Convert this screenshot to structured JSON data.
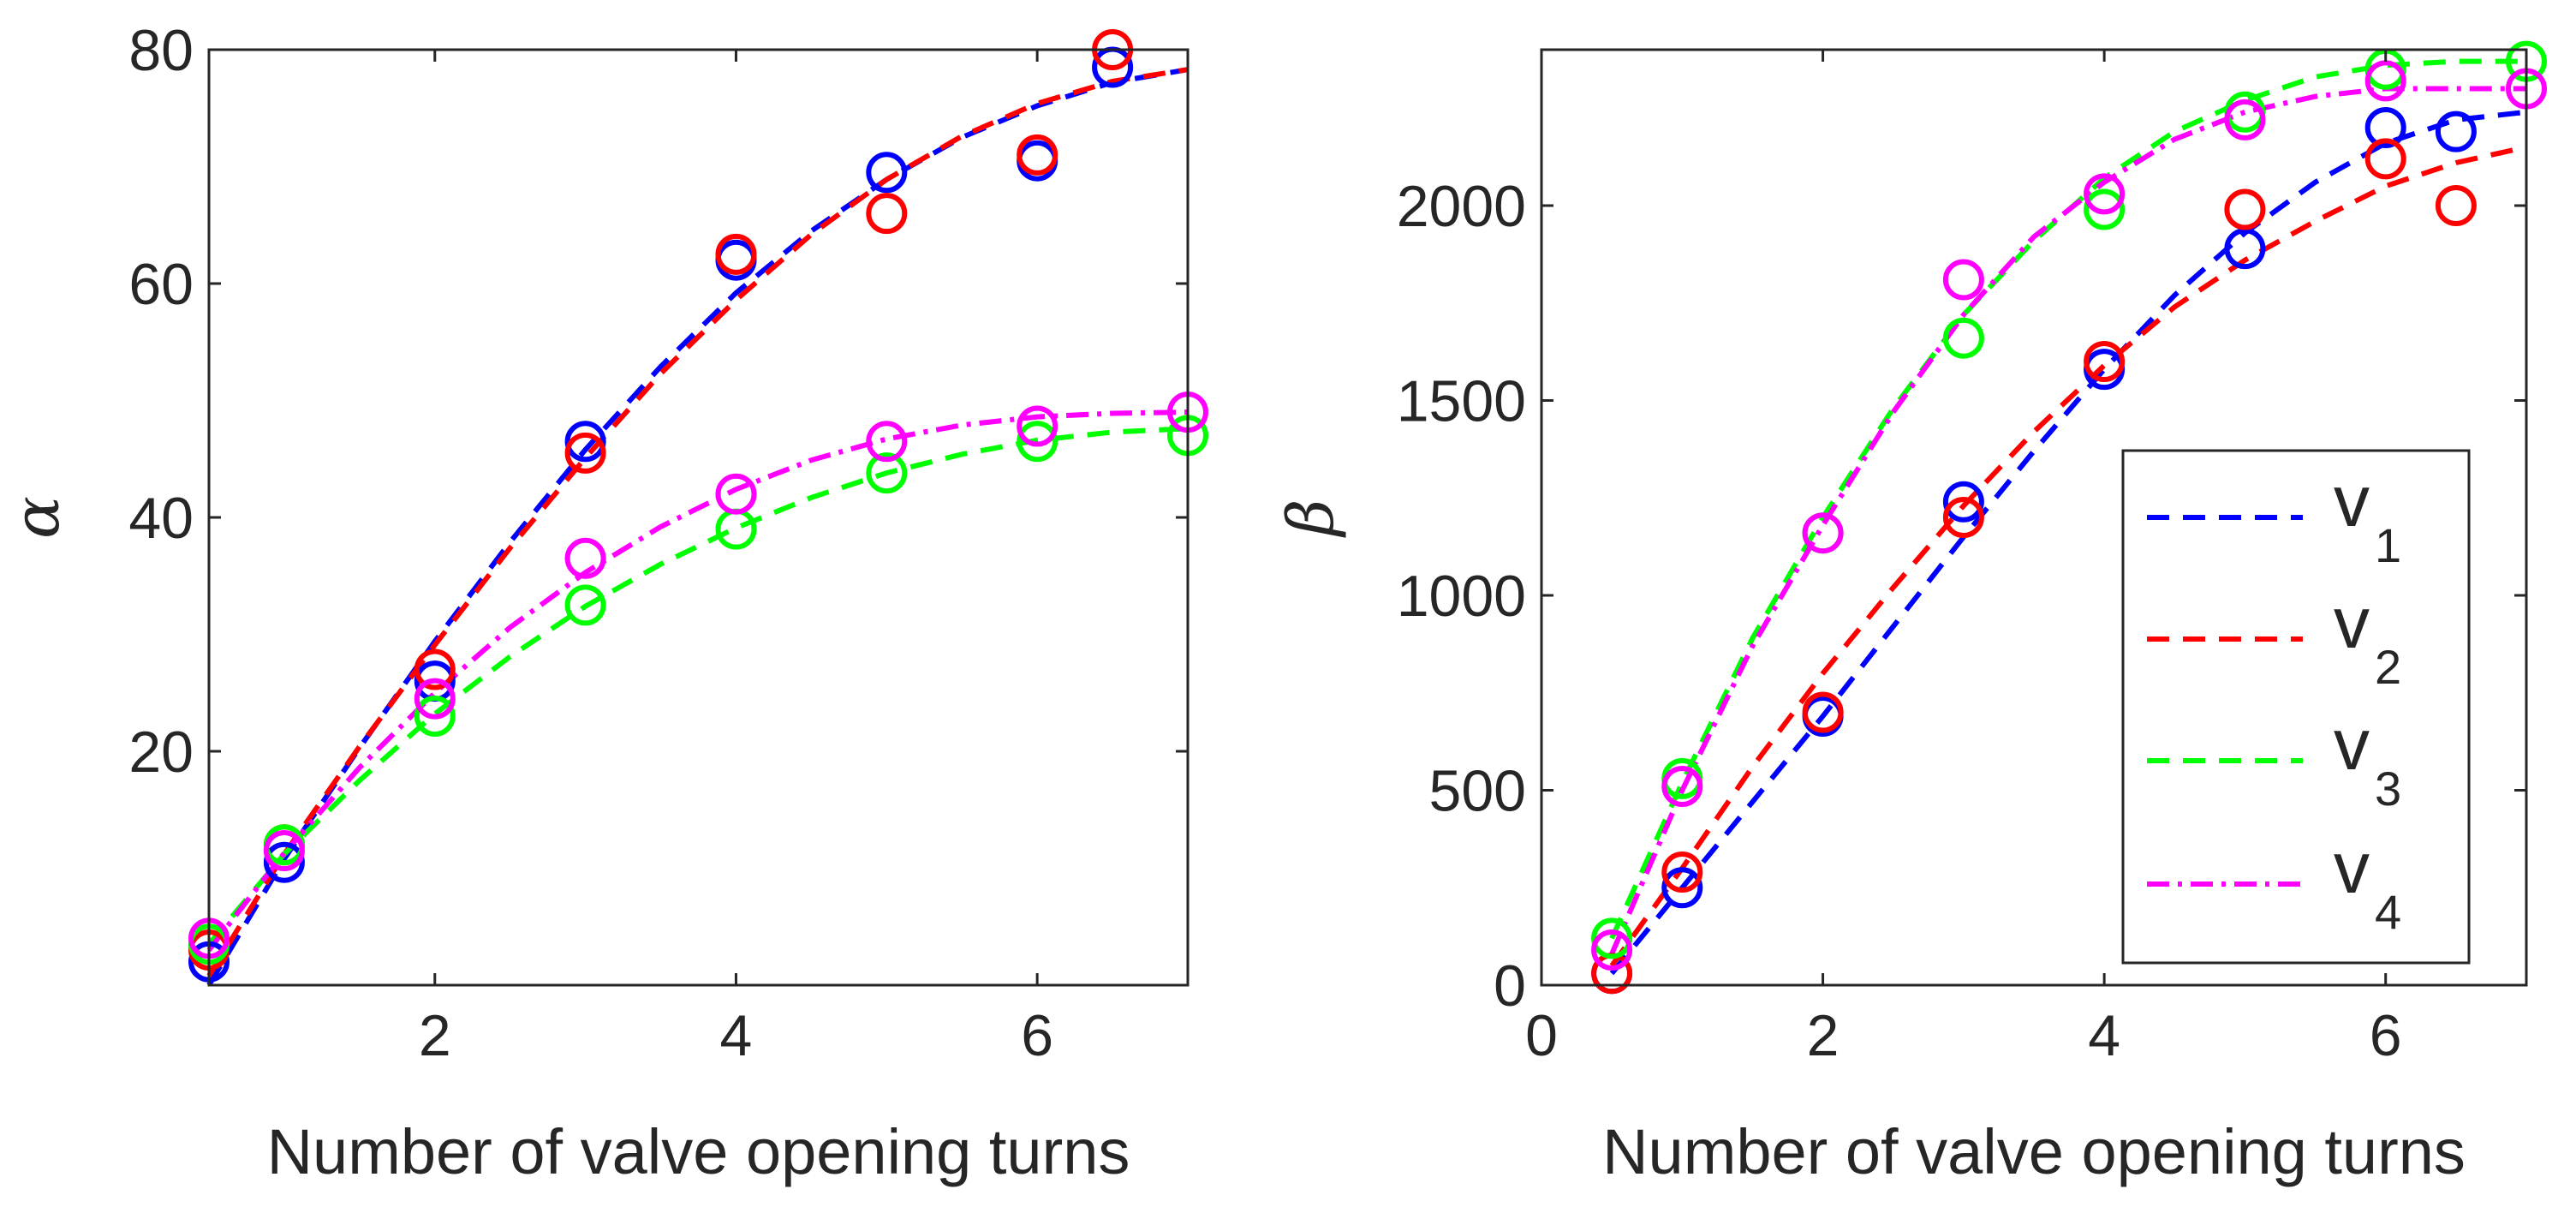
{
  "colors": {
    "v1": "#0000ff",
    "v2": "#ff0000",
    "v3": "#00ff00",
    "v4": "#ff00ff",
    "axis": "#262626",
    "legend_border": "#262626"
  },
  "chart_data": [
    {
      "type": "scatter",
      "xlabel": "Number of valve opening turns",
      "ylabel": "α",
      "xlim": [
        0.5,
        7
      ],
      "ylim": [
        0,
        80
      ],
      "xticks": [
        2,
        4,
        6
      ],
      "yticks": [
        20,
        40,
        60,
        80
      ],
      "grid": false,
      "series": [
        {
          "key": "v1",
          "color": "#0000ff",
          "line": "dashed",
          "points": [
            [
              0.5,
              2
            ],
            [
              1,
              10.5
            ],
            [
              2,
              26
            ],
            [
              3,
              46.5
            ],
            [
              4,
              62
            ],
            [
              5,
              69.5
            ],
            [
              6,
              70.5
            ],
            [
              6.5,
              78.5
            ]
          ],
          "fit": [
            [
              0.5,
              0
            ],
            [
              1,
              10.8
            ],
            [
              1.5,
              20.3
            ],
            [
              2,
              29.4
            ],
            [
              2.5,
              37.9
            ],
            [
              3,
              45.8
            ],
            [
              3.5,
              52.9
            ],
            [
              4,
              59.2
            ],
            [
              4.5,
              64.5
            ],
            [
              5,
              68.9
            ],
            [
              5.5,
              72.5
            ],
            [
              6,
              75.2
            ],
            [
              6.5,
              77.2
            ],
            [
              7,
              78.3
            ]
          ]
        },
        {
          "key": "v2",
          "color": "#ff0000",
          "line": "dashed",
          "points": [
            [
              0.5,
              3
            ],
            [
              1,
              12
            ],
            [
              2,
              27
            ],
            [
              3,
              45.5
            ],
            [
              4,
              62.5
            ],
            [
              5,
              66
            ],
            [
              6,
              71
            ],
            [
              6.5,
              80
            ]
          ],
          "fit": [
            [
              0.5,
              0.8
            ],
            [
              1,
              11.2
            ],
            [
              1.5,
              20.4
            ],
            [
              2,
              29.1
            ],
            [
              2.5,
              37.4
            ],
            [
              3,
              45.1
            ],
            [
              3.5,
              52.3
            ],
            [
              4,
              58.6
            ],
            [
              4.5,
              64.2
            ],
            [
              5,
              68.9
            ],
            [
              5.5,
              72.6
            ],
            [
              6,
              75.4
            ],
            [
              6.5,
              77.3
            ],
            [
              7,
              78.3
            ]
          ]
        },
        {
          "key": "v3",
          "color": "#00ff00",
          "line": "dashed",
          "points": [
            [
              0.5,
              3.5
            ],
            [
              1,
              12
            ],
            [
              2,
              23
            ],
            [
              3,
              32.5
            ],
            [
              4,
              39
            ],
            [
              5,
              43.8
            ],
            [
              6,
              46.5
            ],
            [
              7,
              47
            ]
          ],
          "fit": [
            [
              0.5,
              3.5
            ],
            [
              1,
              11.2
            ],
            [
              1.5,
              17.5
            ],
            [
              2,
              23.2
            ],
            [
              2.5,
              28.1
            ],
            [
              3,
              32.4
            ],
            [
              3.5,
              36.0
            ],
            [
              4,
              39.1
            ],
            [
              4.5,
              41.7
            ],
            [
              5,
              43.8
            ],
            [
              5.5,
              45.4
            ],
            [
              6,
              46.6
            ],
            [
              6.5,
              47.3
            ],
            [
              7,
              47.6
            ]
          ]
        },
        {
          "key": "v4",
          "color": "#ff00ff",
          "line": "dashdot",
          "points": [
            [
              0.5,
              4
            ],
            [
              1,
              11.5
            ],
            [
              2,
              24.5
            ],
            [
              3,
              36.5
            ],
            [
              4,
              42
            ],
            [
              5,
              46.5
            ],
            [
              6,
              47.8
            ],
            [
              7,
              49
            ]
          ],
          "fit": [
            [
              0.5,
              3
            ],
            [
              1,
              11.3
            ],
            [
              1.5,
              18.6
            ],
            [
              2,
              25.0
            ],
            [
              2.5,
              30.6
            ],
            [
              3,
              35.3
            ],
            [
              3.5,
              39.2
            ],
            [
              4,
              42.4
            ],
            [
              4.5,
              44.9
            ],
            [
              5,
              46.7
            ],
            [
              5.5,
              47.9
            ],
            [
              6,
              48.6
            ],
            [
              6.5,
              48.9
            ],
            [
              7,
              49
            ]
          ]
        }
      ]
    },
    {
      "type": "scatter",
      "xlabel": "Number of valve opening turns",
      "ylabel": "β",
      "xlim": [
        0,
        7
      ],
      "ylim": [
        0,
        2400
      ],
      "xticks": [
        0,
        2,
        4,
        6
      ],
      "yticks": [
        0,
        500,
        1000,
        1500,
        2000
      ],
      "grid": false,
      "legend": {
        "placement": "lower-right",
        "entries": [
          {
            "key": "v1",
            "base": "v",
            "sub": "1"
          },
          {
            "key": "v2",
            "base": "v",
            "sub": "2"
          },
          {
            "key": "v3",
            "base": "v",
            "sub": "3"
          },
          {
            "key": "v4",
            "base": "v",
            "sub": "4"
          }
        ]
      },
      "series": [
        {
          "key": "v1",
          "color": "#0000ff",
          "line": "dashed",
          "points": [
            [
              0.5,
              30
            ],
            [
              1,
              250
            ],
            [
              2,
              690
            ],
            [
              3,
              1240
            ],
            [
              4,
              1580
            ],
            [
              5,
              1890
            ],
            [
              6,
              2200
            ],
            [
              6.5,
              2190
            ]
          ],
          "fit": [
            [
              0.5,
              30
            ],
            [
              1,
              250
            ],
            [
              1.5,
              470
            ],
            [
              2,
              690
            ],
            [
              2.5,
              920
            ],
            [
              3,
              1150
            ],
            [
              3.5,
              1370
            ],
            [
              4,
              1580
            ],
            [
              4.5,
              1770
            ],
            [
              5,
              1930
            ],
            [
              5.5,
              2060
            ],
            [
              6,
              2160
            ],
            [
              6.5,
              2220
            ],
            [
              7,
              2240
            ]
          ]
        },
        {
          "key": "v2",
          "color": "#ff0000",
          "line": "dashed",
          "points": [
            [
              0.5,
              30
            ],
            [
              1,
              290
            ],
            [
              2,
              700
            ],
            [
              3,
              1200
            ],
            [
              4,
              1600
            ],
            [
              5,
              1990
            ],
            [
              6,
              2120
            ],
            [
              6.5,
              2000
            ]
          ],
          "fit": [
            [
              0.5,
              50
            ],
            [
              1,
              300
            ],
            [
              1.5,
              560
            ],
            [
              2,
              800
            ],
            [
              2.5,
              1020
            ],
            [
              3,
              1230
            ],
            [
              3.5,
              1420
            ],
            [
              4,
              1590
            ],
            [
              4.5,
              1740
            ],
            [
              5,
              1860
            ],
            [
              5.5,
              1960
            ],
            [
              6,
              2050
            ],
            [
              6.5,
              2110
            ],
            [
              7,
              2150
            ]
          ]
        },
        {
          "key": "v3",
          "color": "#00ff00",
          "line": "dashed",
          "points": [
            [
              0.5,
              120
            ],
            [
              1,
              530
            ],
            [
              2,
              1160
            ],
            [
              3,
              1660
            ],
            [
              4,
              1990
            ],
            [
              5,
              2240
            ],
            [
              6,
              2350
            ],
            [
              7,
              2370
            ]
          ],
          "fit": [
            [
              0.5,
              120
            ],
            [
              1,
              520
            ],
            [
              1.5,
              890
            ],
            [
              2,
              1200
            ],
            [
              2.5,
              1480
            ],
            [
              3,
              1720
            ],
            [
              3.5,
              1910
            ],
            [
              4,
              2070
            ],
            [
              4.5,
              2190
            ],
            [
              5,
              2270
            ],
            [
              5.5,
              2330
            ],
            [
              6,
              2360
            ],
            [
              6.5,
              2370
            ],
            [
              7,
              2370
            ]
          ]
        },
        {
          "key": "v4",
          "color": "#ff00ff",
          "line": "dashdot",
          "points": [
            [
              0.5,
              90
            ],
            [
              1,
              510
            ],
            [
              2,
              1160
            ],
            [
              3,
              1810
            ],
            [
              4,
              2030
            ],
            [
              5,
              2220
            ],
            [
              6,
              2320
            ],
            [
              7,
              2300
            ]
          ],
          "fit": [
            [
              0.5,
              80
            ],
            [
              1,
              500
            ],
            [
              1.5,
              870
            ],
            [
              2,
              1180
            ],
            [
              2.5,
              1470
            ],
            [
              3,
              1720
            ],
            [
              3.5,
              1920
            ],
            [
              4,
              2060
            ],
            [
              4.5,
              2170
            ],
            [
              5,
              2240
            ],
            [
              5.5,
              2280
            ],
            [
              6,
              2300
            ],
            [
              6.5,
              2300
            ],
            [
              7,
              2300
            ]
          ]
        }
      ]
    }
  ]
}
